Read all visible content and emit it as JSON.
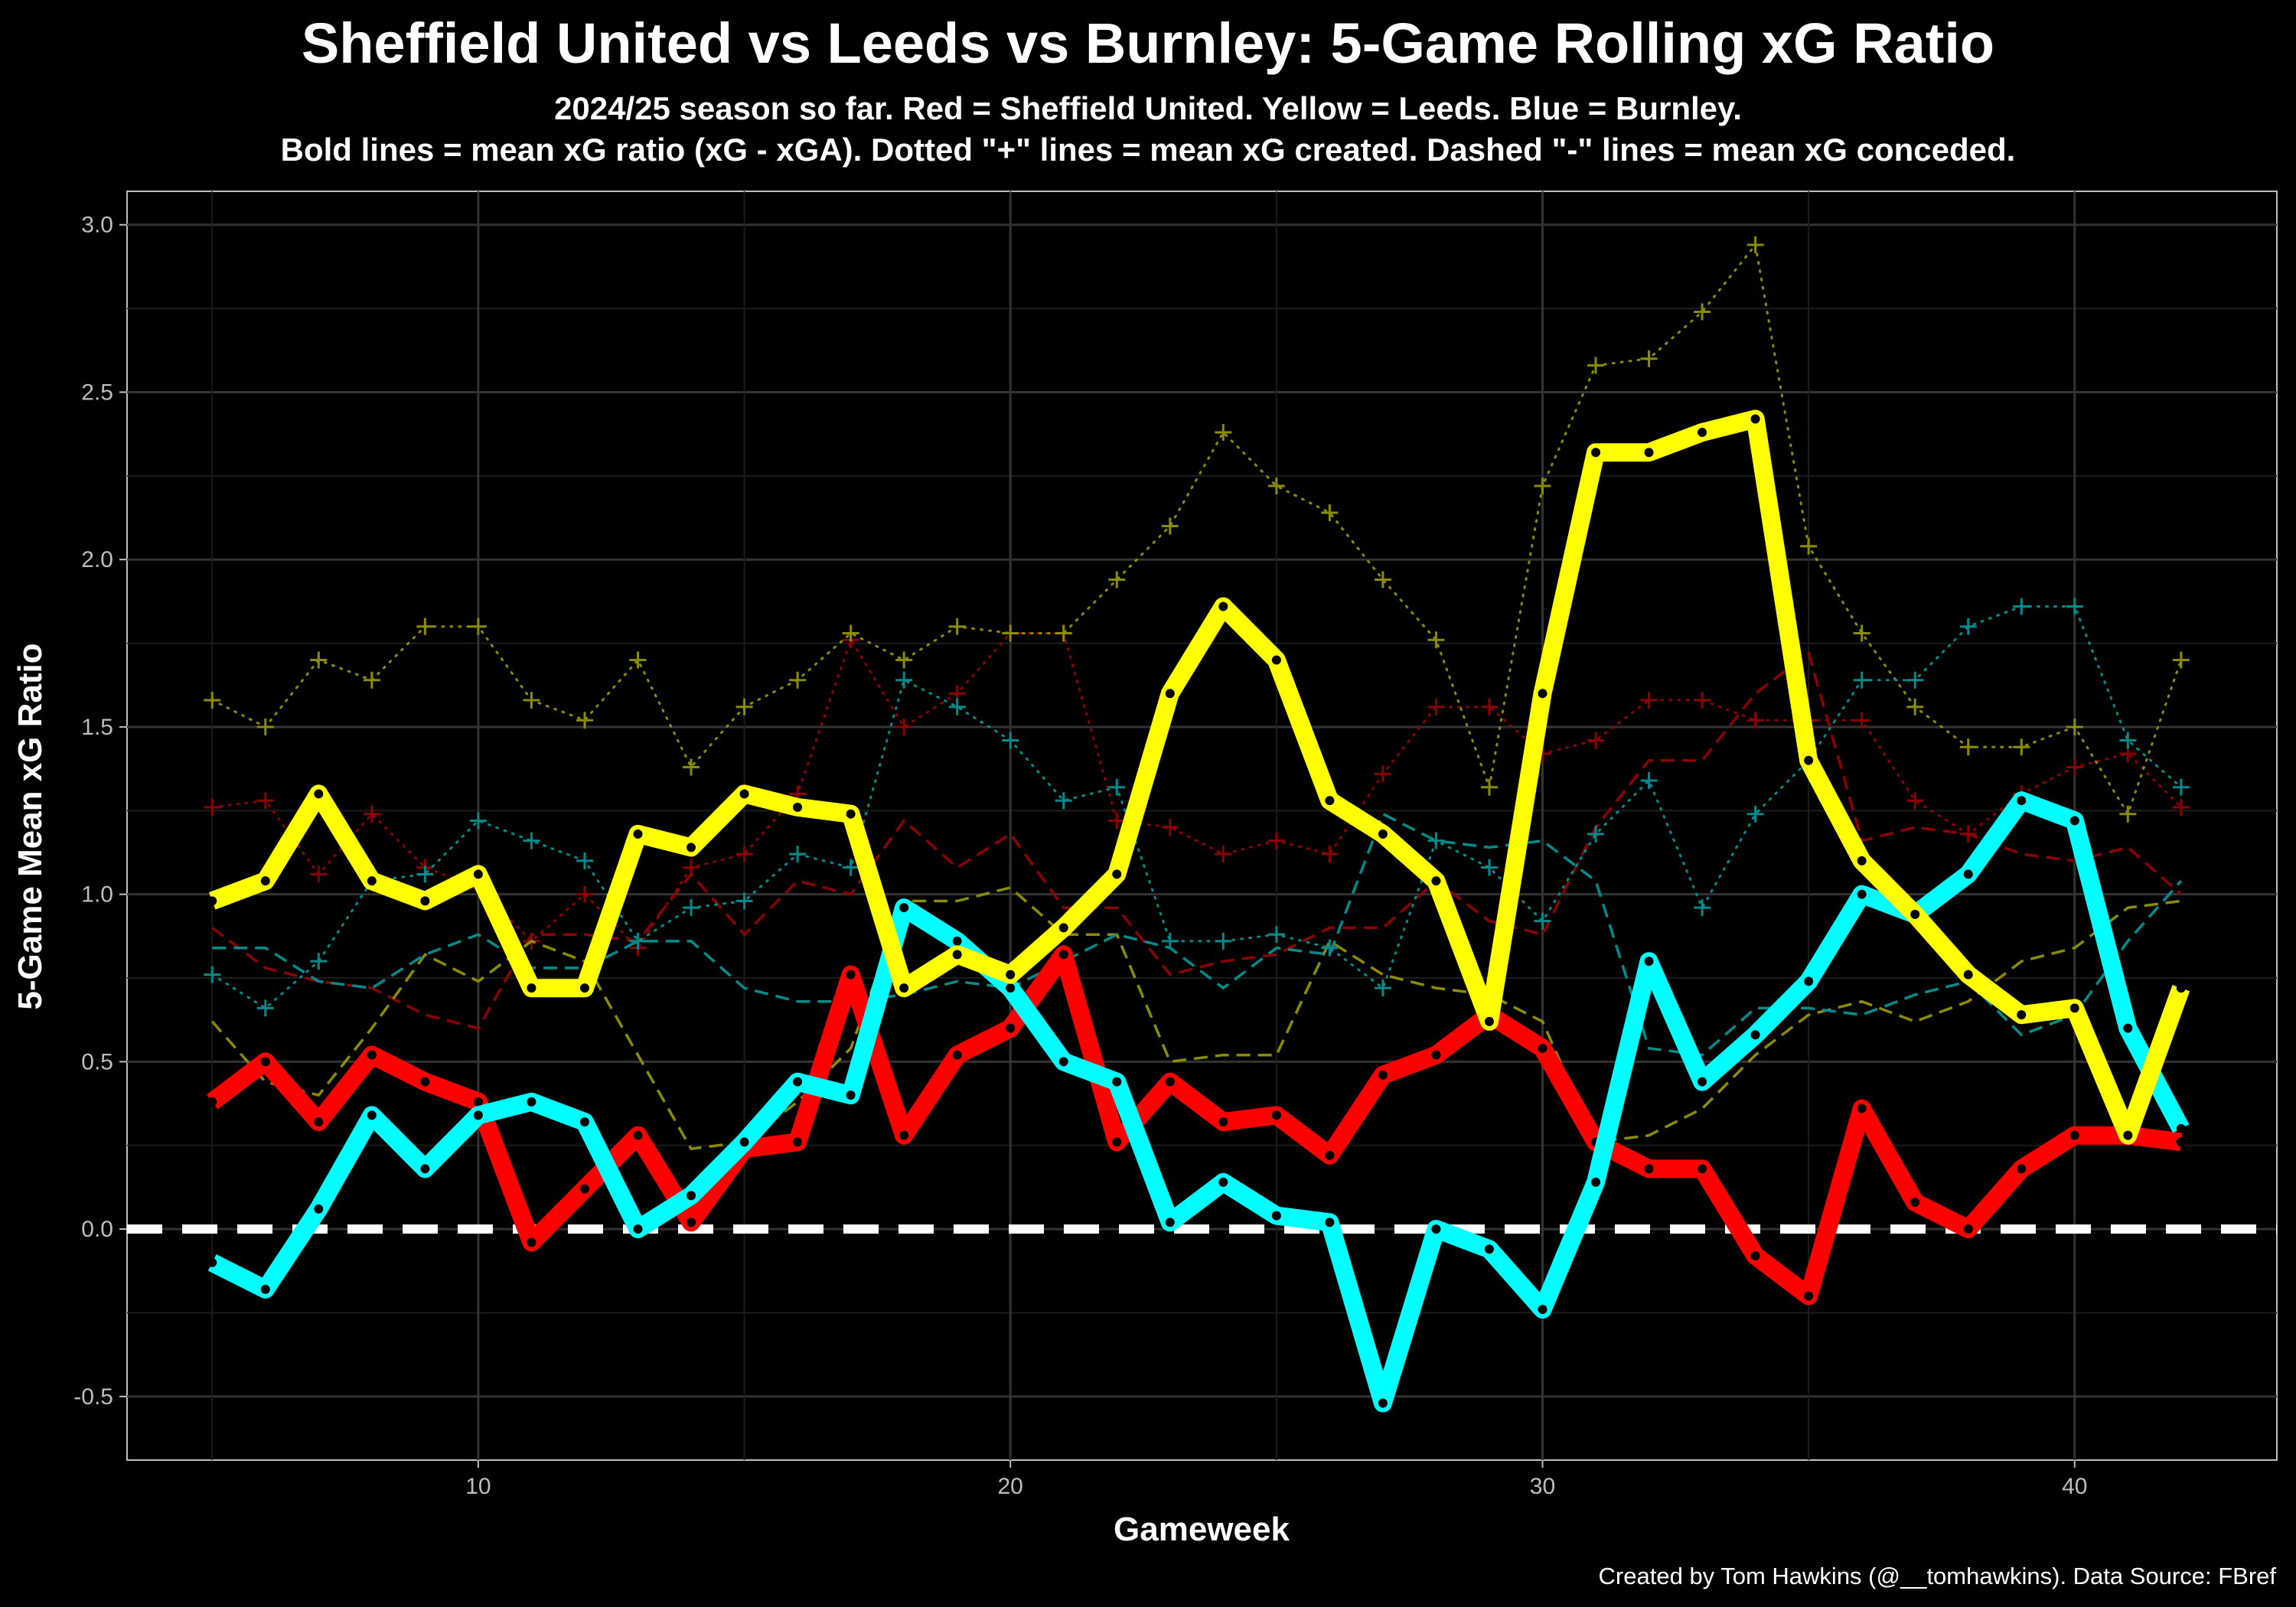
{
  "chart_data": {
    "type": "line",
    "title": "Sheffield United vs Leeds vs Burnley: 5-Game Rolling xG Ratio",
    "subtitle_line1": "2024/25 season so far. Red = Sheffield United. Yellow = Leeds. Blue = Burnley.",
    "subtitle_line2": "Bold lines = mean xG ratio (xG - xGA). Dotted \"+\" lines = mean xG created. Dashed \"-\" lines = mean xG conceded.",
    "xlabel": "Gameweek",
    "ylabel": "5-Game Mean xG Ratio",
    "caption": "Created by Tom Hawkins (@__tomhawkins). Data Source: FBref",
    "xlim": [
      3.4,
      43.8
    ],
    "ylim": [
      -0.69,
      3.1
    ],
    "x_ticks": [
      "10",
      "20",
      "30",
      "40"
    ],
    "y_ticks": [
      "-0.5",
      "0.0",
      "0.5",
      "1.0",
      "1.5",
      "2.0",
      "2.5",
      "3.0"
    ],
    "grid": true,
    "reference_line_y": 0.0,
    "x": [
      5,
      6,
      7,
      8,
      9,
      10,
      11,
      12,
      13,
      14,
      15,
      16,
      17,
      18,
      19,
      20,
      21,
      22,
      23,
      24,
      25,
      26,
      27,
      28,
      29,
      30,
      31,
      32,
      33,
      34,
      35,
      36,
      37,
      38,
      39,
      40,
      41,
      42
    ],
    "series": [
      {
        "color": "#ff0000",
        "ratio": [
          0.38,
          0.5,
          0.32,
          0.52,
          0.44,
          0.38,
          -0.04,
          0.12,
          0.28,
          0.02,
          0.24,
          0.26,
          0.76,
          0.28,
          0.52,
          0.6,
          0.82,
          0.26,
          0.44,
          0.32,
          0.34,
          0.22,
          0.46,
          0.52,
          0.64,
          0.54,
          0.26,
          0.18,
          0.18,
          -0.08,
          -0.2,
          0.36,
          0.08,
          0.0,
          0.18,
          0.28,
          0.28,
          0.26
        ],
        "created": [
          1.26,
          1.28,
          1.06,
          1.24,
          1.08,
          1.02,
          0.86,
          1.0,
          0.84,
          1.08,
          1.12,
          1.3,
          1.76,
          1.5,
          1.6,
          1.78,
          1.78,
          1.22,
          1.2,
          1.12,
          1.16,
          1.12,
          1.36,
          1.56,
          1.56,
          1.42,
          1.46,
          1.58,
          1.58,
          1.52,
          1.52,
          1.52,
          1.28,
          1.18,
          1.3,
          1.38,
          1.42,
          1.26
        ],
        "conceded": [
          0.9,
          0.78,
          0.74,
          0.72,
          0.64,
          0.6,
          0.88,
          0.88,
          0.86,
          1.06,
          0.88,
          1.04,
          1.0,
          1.22,
          1.08,
          1.18,
          0.96,
          0.96,
          0.76,
          0.8,
          0.82,
          0.9,
          0.9,
          1.04,
          0.92,
          0.88,
          1.2,
          1.4,
          1.4,
          1.6,
          1.72,
          1.16,
          1.2,
          1.18,
          1.12,
          1.1,
          1.14,
          1.0
        ]
      },
      {
        "color": "#ffff00",
        "ratio": [
          0.98,
          1.04,
          1.3,
          1.04,
          0.98,
          1.06,
          0.72,
          0.72,
          1.18,
          1.14,
          1.3,
          1.26,
          1.24,
          0.72,
          0.82,
          0.76,
          0.9,
          1.06,
          1.6,
          1.86,
          1.7,
          1.28,
          1.18,
          1.04,
          0.62,
          1.6,
          2.32,
          2.32,
          2.38,
          2.42,
          1.4,
          1.1,
          0.94,
          0.76,
          0.64,
          0.66,
          0.28,
          0.72
        ],
        "created": [
          1.58,
          1.5,
          1.7,
          1.64,
          1.8,
          1.8,
          1.58,
          1.52,
          1.7,
          1.38,
          1.56,
          1.64,
          1.78,
          1.7,
          1.8,
          1.78,
          1.78,
          1.94,
          2.1,
          2.38,
          2.22,
          2.14,
          1.94,
          1.76,
          1.32,
          2.22,
          2.58,
          2.6,
          2.74,
          2.94,
          2.04,
          1.78,
          1.56,
          1.44,
          1.44,
          1.5,
          1.24,
          1.7
        ],
        "conceded": [
          0.62,
          0.44,
          0.4,
          0.6,
          0.82,
          0.74,
          0.86,
          0.8,
          0.52,
          0.24,
          0.26,
          0.38,
          0.54,
          0.98,
          0.98,
          1.02,
          0.88,
          0.88,
          0.5,
          0.52,
          0.52,
          0.86,
          0.76,
          0.72,
          0.7,
          0.62,
          0.26,
          0.28,
          0.36,
          0.52,
          0.64,
          0.68,
          0.62,
          0.68,
          0.8,
          0.84,
          0.96,
          0.98
        ]
      },
      {
        "color": "#00ffff",
        "ratio": [
          -0.1,
          -0.18,
          0.06,
          0.34,
          0.18,
          0.34,
          0.38,
          0.32,
          0.0,
          0.1,
          0.26,
          0.44,
          0.4,
          0.96,
          0.86,
          0.72,
          0.5,
          0.44,
          0.02,
          0.14,
          0.04,
          0.02,
          -0.52,
          0.0,
          -0.06,
          -0.24,
          0.14,
          0.8,
          0.44,
          0.58,
          0.74,
          1.0,
          0.94,
          1.06,
          1.28,
          1.22,
          0.6,
          0.3
        ],
        "created": [
          0.76,
          0.66,
          0.8,
          1.04,
          1.06,
          1.22,
          1.16,
          1.1,
          0.86,
          0.96,
          0.98,
          1.12,
          1.08,
          1.64,
          1.56,
          1.46,
          1.28,
          1.32,
          0.86,
          0.86,
          0.88,
          0.84,
          0.72,
          1.16,
          1.08,
          0.92,
          1.18,
          1.34,
          0.96,
          1.24,
          1.4,
          1.64,
          1.64,
          1.8,
          1.86,
          1.86,
          1.46,
          1.32
        ],
        "conceded": [
          0.84,
          0.84,
          0.74,
          0.72,
          0.82,
          0.88,
          0.78,
          0.78,
          0.86,
          0.86,
          0.72,
          0.68,
          0.68,
          0.7,
          0.74,
          0.72,
          0.8,
          0.88,
          0.84,
          0.72,
          0.84,
          0.82,
          1.24,
          1.16,
          1.14,
          1.16,
          1.04,
          0.54,
          0.52,
          0.66,
          0.66,
          0.64,
          0.7,
          0.74,
          0.58,
          0.64,
          0.86,
          1.04
        ]
      }
    ]
  }
}
